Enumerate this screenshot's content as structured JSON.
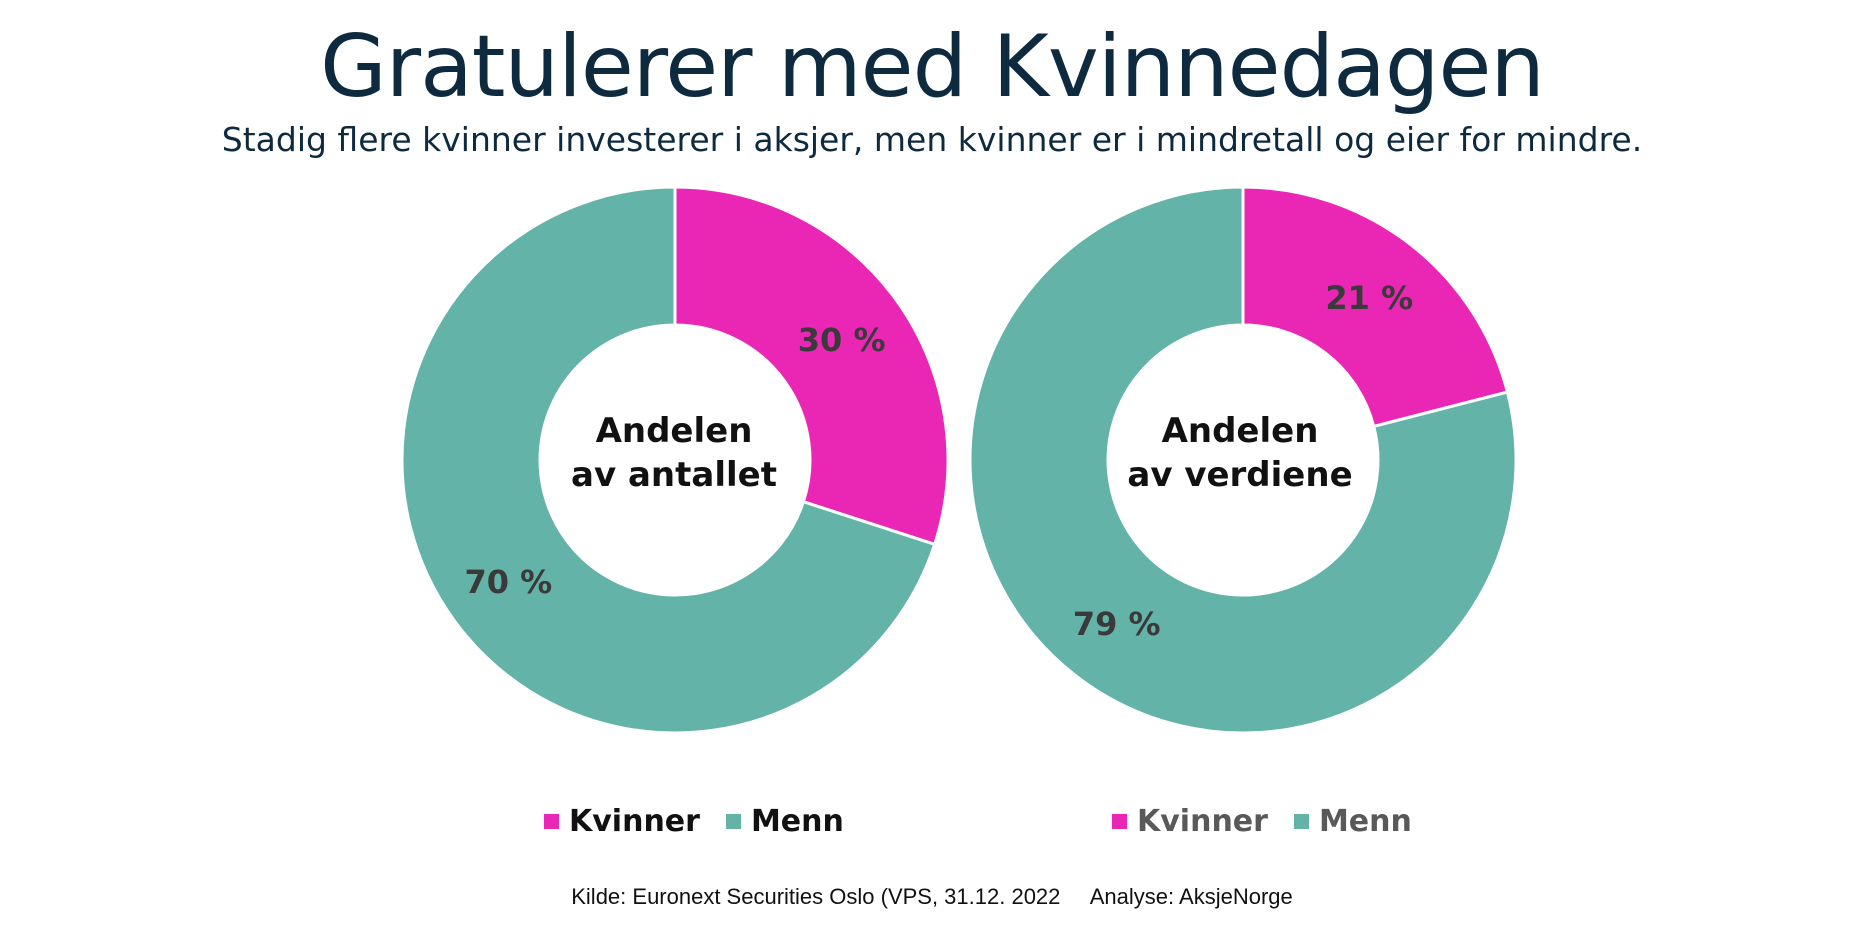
{
  "title": "Gratulerer med Kvinnedagen",
  "subtitle": "Stadig flere kvinner investerer i aksjer, men kvinner er i mindretall og eier for mindre.",
  "colors": {
    "kvinner": "#e927b4",
    "menn": "#63b3a8",
    "label": "#3a3a3a",
    "title": "#0e2a3f"
  },
  "chart_data": [
    {
      "type": "pie",
      "variant": "donut",
      "center_label_line1": "Andelen",
      "center_label_line2": "av antallet",
      "slices": [
        {
          "name": "Kvinner",
          "value": 30,
          "label": "30 %"
        },
        {
          "name": "Menn",
          "value": 70,
          "label": "70 %"
        }
      ],
      "legend": {
        "items": [
          "Kvinner",
          "Menn"
        ],
        "placement": "bottom",
        "text_color": "#111111"
      }
    },
    {
      "type": "pie",
      "variant": "donut",
      "center_label_line1": "Andelen",
      "center_label_line2": "av verdiene",
      "slices": [
        {
          "name": "Kvinner",
          "value": 21,
          "label": "21 %"
        },
        {
          "name": "Menn",
          "value": 79,
          "label": "79 %"
        }
      ],
      "legend": {
        "items": [
          "Kvinner",
          "Menn"
        ],
        "placement": "bottom",
        "text_color": "#595959"
      }
    }
  ],
  "source": "Kilde: Euronext Securities Oslo (VPS, 31.12. 2022     Analyse: AksjeNorge"
}
